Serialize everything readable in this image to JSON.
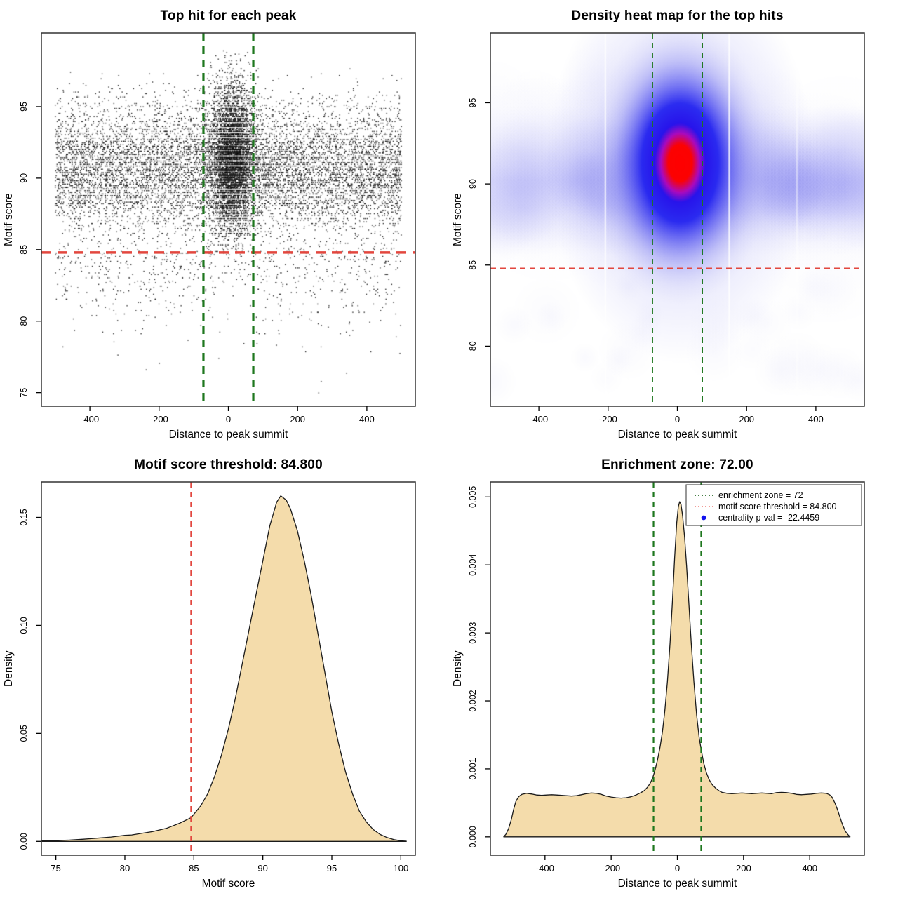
{
  "page": {
    "background": "#ffffff"
  },
  "colors": {
    "red_line": "#e2473f",
    "green_line": "#1e771e",
    "legend_red": "#ef8d88",
    "legend_green": "#2d6e2d",
    "legend_blue": "#1212ee",
    "density_fill": "#f4dcab",
    "curve_stroke": "#1a1a1a",
    "point_color": "#000000",
    "box_stroke": "#333333",
    "heat_soft": "120,120,238",
    "heat_halo": "150,150,242",
    "heat_smudge": "172,172,238"
  },
  "layout_note": "2x2 grid of R base-graphics plots",
  "chart_data": [
    {
      "id": "scatter",
      "type": "scatter",
      "title": "Top hit for each peak",
      "xlabel": "Distance to peak summit",
      "ylabel": "Motif score",
      "x_range": [
        -540,
        540
      ],
      "y_range": [
        74.05,
        100.15
      ],
      "grid": false,
      "x_ticks": [
        {
          "v": -400,
          "label": "-400"
        },
        {
          "v": -200,
          "label": "-200"
        },
        {
          "v": 0,
          "label": "0"
        },
        {
          "v": 200,
          "label": "200"
        },
        {
          "v": 400,
          "label": "400"
        }
      ],
      "y_ticks": [
        {
          "v": 75,
          "label": "75"
        },
        {
          "v": 80,
          "label": "80"
        },
        {
          "v": 85,
          "label": "85"
        },
        {
          "v": 90,
          "label": "90"
        },
        {
          "v": 95,
          "label": "95"
        }
      ],
      "lines": [
        {
          "axis": "y",
          "v": 84.8,
          "color": "red_line",
          "width": 3.4,
          "dash": [
            14,
            9
          ],
          "name": "motif-score-threshold-line"
        },
        {
          "axis": "x",
          "v": -72,
          "color": "green_line",
          "width": 3.2,
          "dash": [
            11,
            8
          ],
          "name": "enrichment-zone-left-line"
        },
        {
          "axis": "x",
          "v": 72,
          "color": "green_line",
          "width": 3.2,
          "dash": [
            11,
            8
          ],
          "name": "enrichment-zone-right-line"
        }
      ],
      "points": {
        "seed": 42,
        "size": 1.35,
        "alpha": 0.9,
        "quantize_y": 0.115,
        "groups": [
          {
            "name": "background-band",
            "n": 8500,
            "x": {
              "dist": "uniform",
              "min": -500,
              "max": 500
            },
            "y": {
              "dist": "normal",
              "mean": 90.6,
              "sd": 2.3,
              "min": 85.3,
              "max": 97.8
            }
          },
          {
            "name": "background-low",
            "n": 700,
            "x": {
              "dist": "uniform",
              "min": -500,
              "max": 500
            },
            "y": {
              "dist": "half_normal_down",
              "base": 85.2,
              "sd": 2.9,
              "min": 74.4
            }
          },
          {
            "name": "central-cluster",
            "n": 4500,
            "x": {
              "dist": "normal",
              "mean": 10,
              "sd": 30,
              "min": -80,
              "max": 105
            },
            "y": {
              "dist": "normal",
              "mean": 91.5,
              "sd": 2.6,
              "min": 84.5,
              "max": 99.2
            }
          },
          {
            "name": "central-fringe",
            "n": 500,
            "x": {
              "dist": "normal",
              "mean": 10,
              "sd": 55,
              "min": -160,
              "max": 180
            },
            "y": {
              "dist": "normal",
              "mean": 91.0,
              "sd": 3.0,
              "min": 84.0,
              "max": 98.5
            }
          }
        ]
      }
    },
    {
      "id": "heatmap",
      "type": "heatmap",
      "title": "Density heat map for the top hits",
      "xlabel": "Distance to peak summit",
      "ylabel": "Motif score",
      "x_range": [
        -540,
        540
      ],
      "y_range": [
        76.3,
        99.3
      ],
      "grid": false,
      "x_ticks": [
        {
          "v": -400,
          "label": "-400"
        },
        {
          "v": -200,
          "label": "-200"
        },
        {
          "v": 0,
          "label": "0"
        },
        {
          "v": 200,
          "label": "200"
        },
        {
          "v": 400,
          "label": "400"
        }
      ],
      "y_ticks": [
        {
          "v": 80,
          "label": "80"
        },
        {
          "v": 85,
          "label": "85"
        },
        {
          "v": 90,
          "label": "90"
        },
        {
          "v": 95,
          "label": "95"
        }
      ],
      "lines": [
        {
          "axis": "y",
          "v": 84.8,
          "color": "red_line",
          "width": 1.7,
          "dash": [
            8,
            6
          ],
          "name": "motif-score-threshold-line"
        },
        {
          "axis": "x",
          "v": -72,
          "color": "green_line",
          "width": 1.9,
          "dash": [
            8,
            6
          ],
          "name": "enrichment-zone-left-line"
        },
        {
          "axis": "x",
          "v": 72,
          "color": "green_line",
          "width": 1.9,
          "dash": [
            8,
            6
          ],
          "name": "enrichment-zone-right-line"
        }
      ],
      "heat": {
        "seed": 7,
        "band_center_y": 90.2,
        "hotspot": {
          "x": 8,
          "y": 91.3
        },
        "streaks": [
          {
            "x": -208,
            "alpha": 0.7
          },
          {
            "x": 150,
            "alpha": 0.8
          },
          {
            "x": 345,
            "alpha": 0.45
          }
        ]
      }
    },
    {
      "id": "score-density",
      "type": "area",
      "title": "Motif score threshold: 84.800",
      "xlabel": "Motif score",
      "ylabel": "Density",
      "x_range": [
        73.95,
        101.05
      ],
      "y_range": [
        -0.0064,
        0.1664
      ],
      "grid": false,
      "x_ticks": [
        {
          "v": 75,
          "label": "75"
        },
        {
          "v": 80,
          "label": "80"
        },
        {
          "v": 85,
          "label": "85"
        },
        {
          "v": 90,
          "label": "90"
        },
        {
          "v": 95,
          "label": "95"
        },
        {
          "v": 100,
          "label": "100"
        }
      ],
      "y_ticks": [
        {
          "v": 0,
          "label": "0.00"
        },
        {
          "v": 0.05,
          "label": "0.05"
        },
        {
          "v": 0.1,
          "label": "0.10"
        },
        {
          "v": 0.15,
          "label": "0.15"
        }
      ],
      "lines": [
        {
          "axis": "x",
          "v": 84.8,
          "color": "red_line",
          "width": 2.2,
          "dash": [
            8,
            6
          ],
          "name": "motif-score-threshold-line"
        }
      ],
      "curve": [
        [
          74.0,
          0.0002
        ],
        [
          75,
          0.0004
        ],
        [
          76,
          0.0006
        ],
        [
          77,
          0.001
        ],
        [
          78,
          0.0015
        ],
        [
          79,
          0.002
        ],
        [
          80,
          0.0028
        ],
        [
          80.5,
          0.003
        ],
        [
          81,
          0.0035
        ],
        [
          82,
          0.0045
        ],
        [
          83,
          0.006
        ],
        [
          84,
          0.0085
        ],
        [
          84.8,
          0.011
        ],
        [
          85.5,
          0.0165
        ],
        [
          86,
          0.022
        ],
        [
          86.5,
          0.03
        ],
        [
          87,
          0.04
        ],
        [
          87.5,
          0.052
        ],
        [
          88,
          0.066
        ],
        [
          88.5,
          0.082
        ],
        [
          89,
          0.098
        ],
        [
          89.5,
          0.114
        ],
        [
          90,
          0.13
        ],
        [
          90.5,
          0.146
        ],
        [
          91,
          0.157
        ],
        [
          91.3,
          0.16
        ],
        [
          91.7,
          0.158
        ],
        [
          92,
          0.154
        ],
        [
          92.5,
          0.144
        ],
        [
          93,
          0.13
        ],
        [
          93.5,
          0.114
        ],
        [
          94,
          0.096
        ],
        [
          94.5,
          0.078
        ],
        [
          95,
          0.06
        ],
        [
          95.5,
          0.045
        ],
        [
          96,
          0.032
        ],
        [
          96.5,
          0.022
        ],
        [
          97,
          0.014
        ],
        [
          97.5,
          0.009
        ],
        [
          98,
          0.0055
        ],
        [
          98.5,
          0.0032
        ],
        [
          99,
          0.0018
        ],
        [
          99.5,
          0.0008
        ],
        [
          100,
          0.0003
        ],
        [
          100.4,
          0.0001
        ]
      ],
      "peak": {
        "x": 91.3,
        "density": 0.16
      }
    },
    {
      "id": "distance-density",
      "type": "area",
      "title": "Enrichment zone: 72.00",
      "xlabel": "Distance to peak summit",
      "ylabel": "Density",
      "x_range": [
        -565,
        565
      ],
      "y_range": [
        -0.00027,
        0.00522
      ],
      "grid": false,
      "x_ticks": [
        {
          "v": -400,
          "label": "-400"
        },
        {
          "v": -200,
          "label": "-200"
        },
        {
          "v": 0,
          "label": "0"
        },
        {
          "v": 200,
          "label": "200"
        },
        {
          "v": 400,
          "label": "400"
        }
      ],
      "y_ticks": [
        {
          "v": 0,
          "label": "0.000"
        },
        {
          "v": 0.001,
          "label": "0.001"
        },
        {
          "v": 0.002,
          "label": "0.002"
        },
        {
          "v": 0.003,
          "label": "0.003"
        },
        {
          "v": 0.004,
          "label": "0.004"
        },
        {
          "v": 0.005,
          "label": "0.005"
        }
      ],
      "lines": [
        {
          "axis": "x",
          "v": -72,
          "color": "green_line",
          "width": 2.2,
          "dash": [
            8,
            6
          ],
          "name": "enrichment-zone-left-line"
        },
        {
          "axis": "x",
          "v": 72,
          "color": "green_line",
          "width": 2.2,
          "dash": [
            8,
            6
          ],
          "name": "enrichment-zone-right-line"
        }
      ],
      "curve": [
        [
          -525,
          0
        ],
        [
          -518,
          4e-05
        ],
        [
          -510,
          0.00012
        ],
        [
          -502,
          0.00025
        ],
        [
          -495,
          0.0004
        ],
        [
          -488,
          0.00052
        ],
        [
          -480,
          0.00059
        ],
        [
          -470,
          0.000625
        ],
        [
          -455,
          0.00064
        ],
        [
          -440,
          0.00063
        ],
        [
          -425,
          0.000615
        ],
        [
          -410,
          0.00061
        ],
        [
          -395,
          0.000615
        ],
        [
          -380,
          0.00062
        ],
        [
          -365,
          0.000615
        ],
        [
          -350,
          0.00061
        ],
        [
          -335,
          0.000605
        ],
        [
          -320,
          0.0006
        ],
        [
          -305,
          0.000605
        ],
        [
          -290,
          0.00062
        ],
        [
          -275,
          0.000635
        ],
        [
          -260,
          0.000645
        ],
        [
          -245,
          0.00064
        ],
        [
          -230,
          0.000625
        ],
        [
          -215,
          0.0006
        ],
        [
          -200,
          0.000585
        ],
        [
          -185,
          0.000575
        ],
        [
          -170,
          0.00057
        ],
        [
          -155,
          0.000575
        ],
        [
          -140,
          0.00059
        ],
        [
          -125,
          0.000615
        ],
        [
          -110,
          0.00065
        ],
        [
          -100,
          0.00068
        ],
        [
          -90,
          0.00073
        ],
        [
          -82,
          0.00079
        ],
        [
          -75,
          0.00086
        ],
        [
          -68,
          0.00097
        ],
        [
          -60,
          0.00113
        ],
        [
          -52,
          0.00133
        ],
        [
          -45,
          0.00155
        ],
        [
          -38,
          0.00185
        ],
        [
          -30,
          0.00228
        ],
        [
          -22,
          0.00285
        ],
        [
          -15,
          0.00345
        ],
        [
          -8,
          0.00412
        ],
        [
          -2,
          0.00462
        ],
        [
          3,
          0.00486
        ],
        [
          7,
          0.00493
        ],
        [
          11,
          0.00489
        ],
        [
          16,
          0.00472
        ],
        [
          22,
          0.0044
        ],
        [
          28,
          0.00398
        ],
        [
          35,
          0.00342
        ],
        [
          42,
          0.00285
        ],
        [
          50,
          0.00228
        ],
        [
          58,
          0.0018
        ],
        [
          66,
          0.00146
        ],
        [
          72,
          0.00128
        ],
        [
          80,
          0.00108
        ],
        [
          88,
          0.00094
        ],
        [
          96,
          0.00084
        ],
        [
          105,
          0.00077
        ],
        [
          115,
          0.00072
        ],
        [
          125,
          0.00068
        ],
        [
          135,
          0.000655
        ],
        [
          150,
          0.00064
        ],
        [
          165,
          0.000635
        ],
        [
          180,
          0.00064
        ],
        [
          195,
          0.000645
        ],
        [
          210,
          0.00064
        ],
        [
          225,
          0.000635
        ],
        [
          240,
          0.00064
        ],
        [
          255,
          0.000645
        ],
        [
          270,
          0.00064
        ],
        [
          285,
          0.000635
        ],
        [
          300,
          0.00065
        ],
        [
          315,
          0.000655
        ],
        [
          330,
          0.00065
        ],
        [
          345,
          0.00064
        ],
        [
          360,
          0.000625
        ],
        [
          375,
          0.00062
        ],
        [
          390,
          0.000625
        ],
        [
          405,
          0.00063
        ],
        [
          420,
          0.00064
        ],
        [
          435,
          0.000645
        ],
        [
          450,
          0.00064
        ],
        [
          460,
          0.00062
        ],
        [
          468,
          0.00058
        ],
        [
          476,
          0.0005
        ],
        [
          484,
          0.0004
        ],
        [
          492,
          0.00028
        ],
        [
          500,
          0.00017
        ],
        [
          508,
          8e-05
        ],
        [
          516,
          3e-05
        ],
        [
          522,
          0
        ]
      ],
      "peak": {
        "x": 7,
        "density": 0.00493
      },
      "legend": {
        "items": [
          {
            "swatch": "dotted-line",
            "color": "legend_green",
            "label": "enrichment zone = 72"
          },
          {
            "swatch": "dotted-line",
            "color": "legend_red",
            "label": "motif score threshold = 84.800"
          },
          {
            "swatch": "dot",
            "color": "legend_blue",
            "label": "centrality p-val = -22.4459"
          }
        ]
      }
    }
  ],
  "annotations": {
    "enrichment_zone": 72,
    "motif_score_threshold": 84.8,
    "centrality_p_val": -22.4459
  }
}
